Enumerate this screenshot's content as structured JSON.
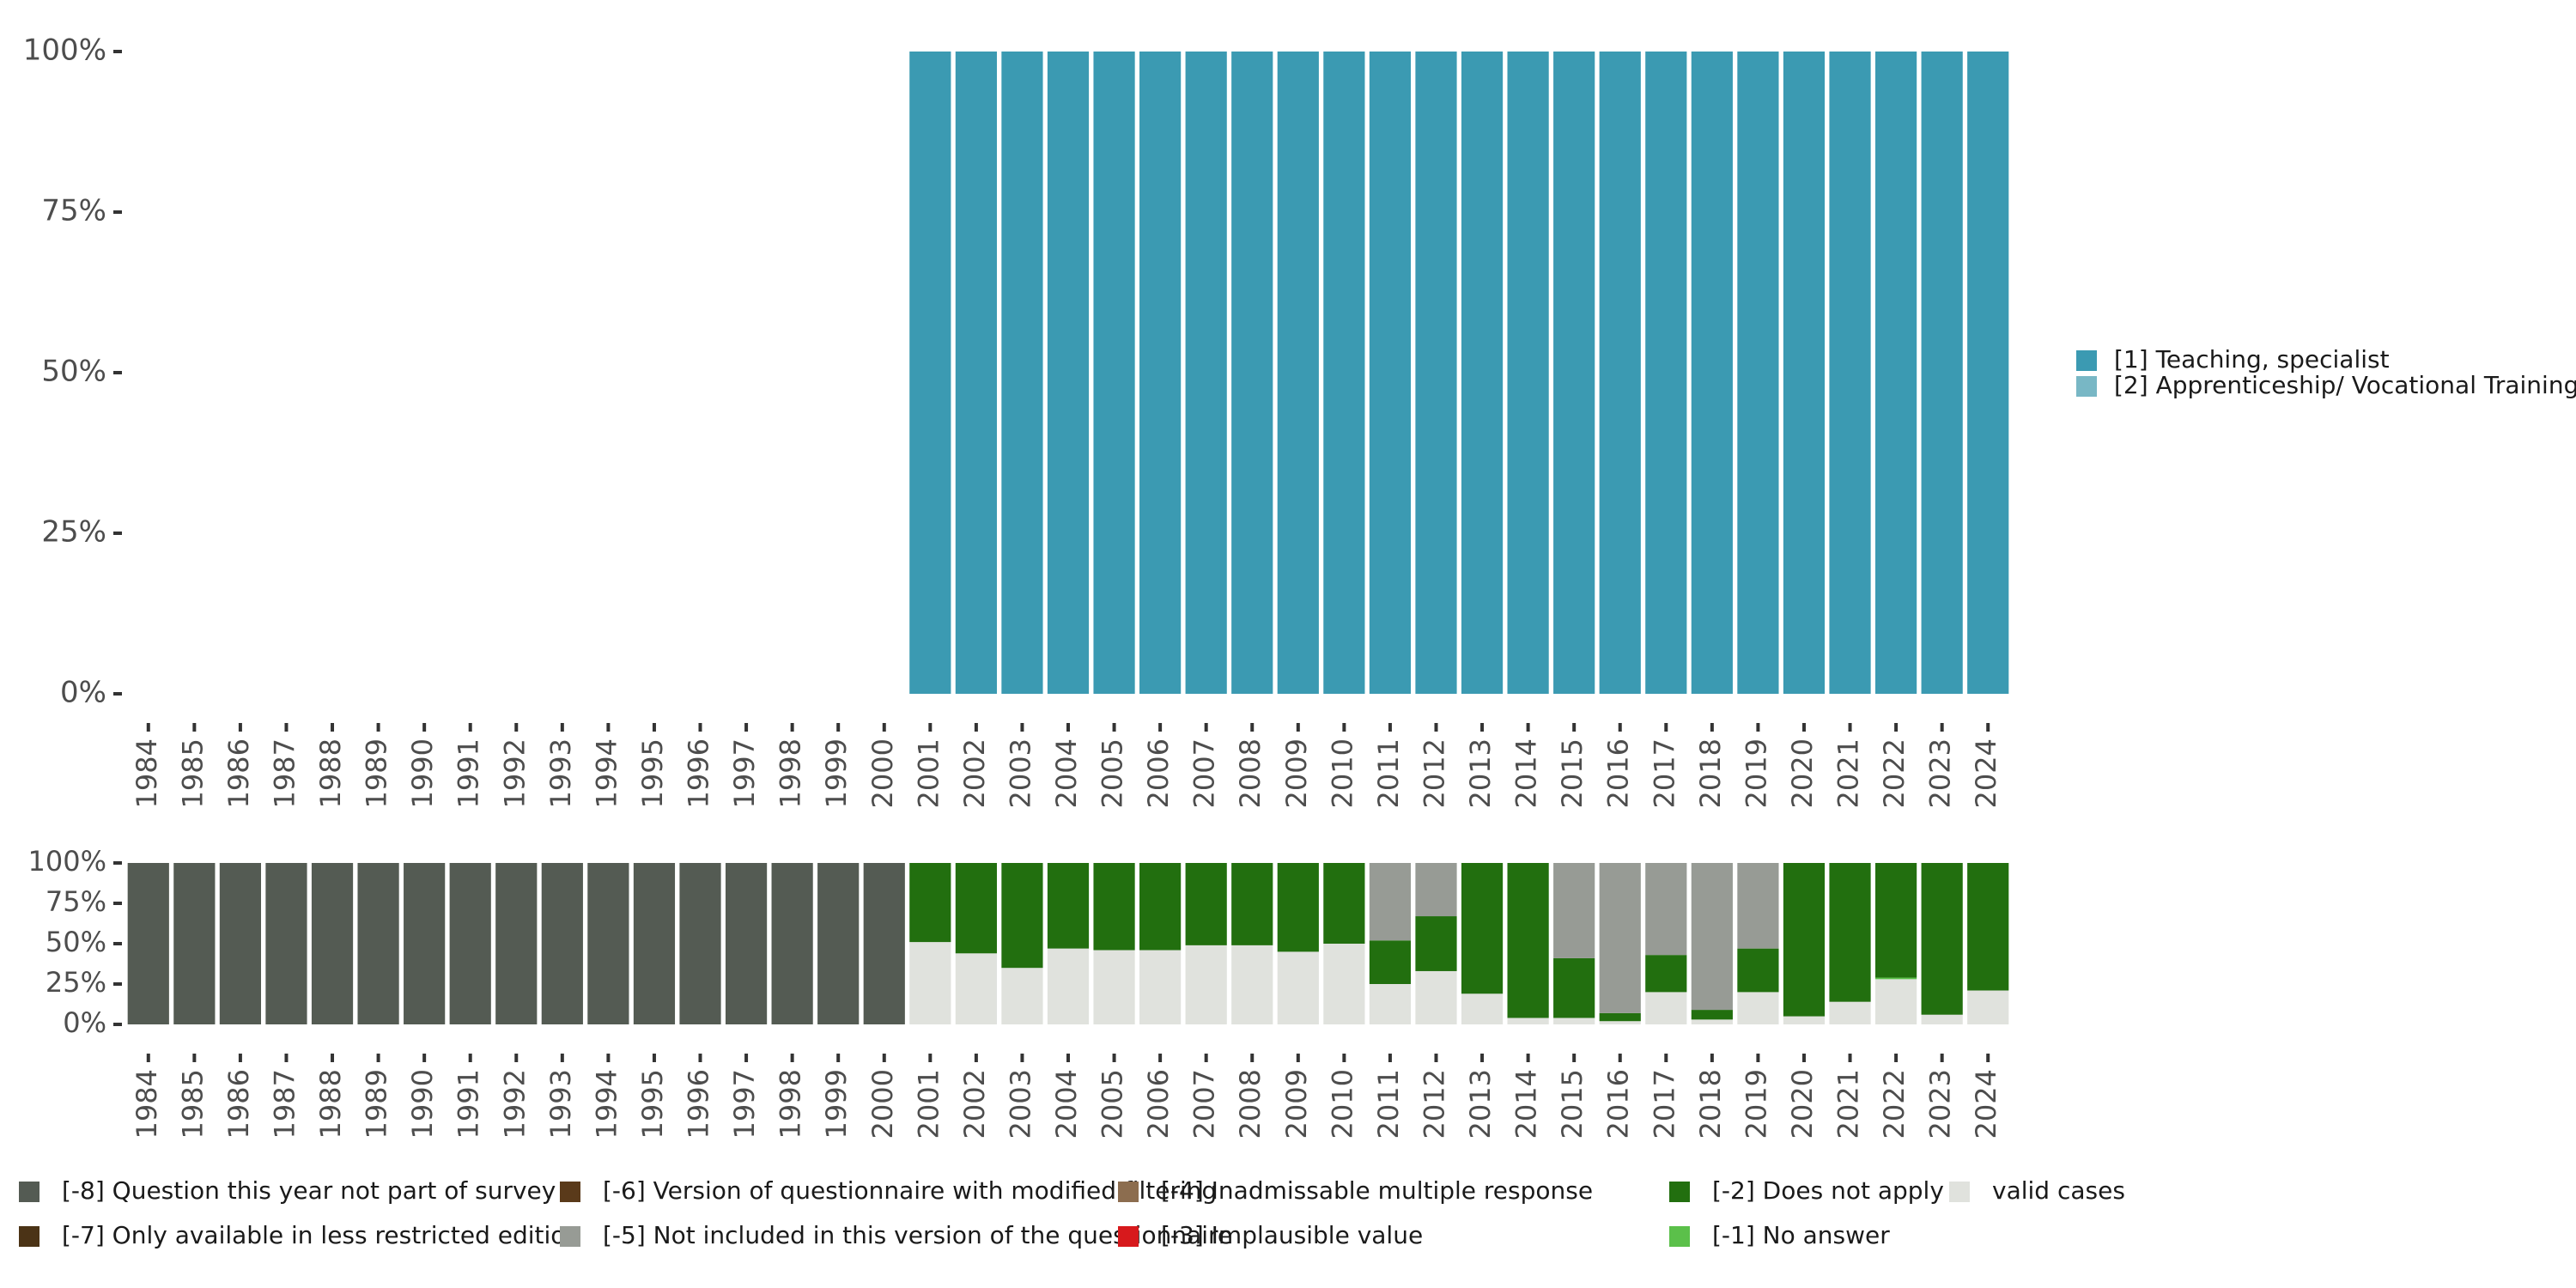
{
  "chart_data": [
    {
      "type": "bar",
      "name": "main",
      "stacked": true,
      "categories": [
        "1984",
        "1985",
        "1986",
        "1987",
        "1988",
        "1989",
        "1990",
        "1991",
        "1992",
        "1993",
        "1994",
        "1995",
        "1996",
        "1997",
        "1998",
        "1999",
        "2000",
        "2001",
        "2002",
        "2003",
        "2004",
        "2005",
        "2006",
        "2007",
        "2008",
        "2009",
        "2010",
        "2011",
        "2012",
        "2013",
        "2014",
        "2015",
        "2016",
        "2017",
        "2018",
        "2019",
        "2020",
        "2021",
        "2022",
        "2023",
        "2024"
      ],
      "series": [
        {
          "name": "[1] Teaching, specialist",
          "color": "#3b9ab2",
          "values": [
            0,
            0,
            0,
            0,
            0,
            0,
            0,
            0,
            0,
            0,
            0,
            0,
            0,
            0,
            0,
            0,
            0,
            100,
            100,
            100,
            100,
            100,
            100,
            100,
            100,
            100,
            100,
            100,
            100,
            100,
            100,
            100,
            100,
            100,
            100,
            100,
            100,
            100,
            100,
            100,
            100
          ]
        },
        {
          "name": "[2] Apprenticeship/ Vocational Training",
          "color": "#78b7c5",
          "values": [
            0,
            0,
            0,
            0,
            0,
            0,
            0,
            0,
            0,
            0,
            0,
            0,
            0,
            0,
            0,
            0,
            0,
            0,
            0,
            0,
            0,
            0,
            0,
            0,
            0,
            0,
            0,
            0,
            0,
            0,
            0,
            0,
            0,
            0,
            0,
            0,
            0,
            0,
            0,
            0,
            0
          ]
        }
      ],
      "yticks": [
        "0%",
        "25%",
        "50%",
        "75%",
        "100%"
      ],
      "ylim": [
        0,
        100
      ]
    },
    {
      "type": "bar",
      "name": "missing",
      "stacked": true,
      "categories": [
        "1984",
        "1985",
        "1986",
        "1987",
        "1988",
        "1989",
        "1990",
        "1991",
        "1992",
        "1993",
        "1994",
        "1995",
        "1996",
        "1997",
        "1998",
        "1999",
        "2000",
        "2001",
        "2002",
        "2003",
        "2004",
        "2005",
        "2006",
        "2007",
        "2008",
        "2009",
        "2010",
        "2011",
        "2012",
        "2013",
        "2014",
        "2015",
        "2016",
        "2017",
        "2018",
        "2019",
        "2020",
        "2021",
        "2022",
        "2023",
        "2024"
      ],
      "series": [
        {
          "name": "valid cases",
          "color": "#e0e2dd",
          "values": [
            0,
            0,
            0,
            0,
            0,
            0,
            0,
            0,
            0,
            0,
            0,
            0,
            0,
            0,
            0,
            0,
            0,
            51,
            44,
            35,
            47,
            46,
            46,
            49,
            49,
            45,
            50,
            25,
            33,
            19,
            4,
            4,
            2,
            20,
            3,
            20,
            5,
            14,
            28,
            6,
            21
          ]
        },
        {
          "name": "[-1] No answer",
          "color": "#5bc04a",
          "values": [
            0,
            0,
            0,
            0,
            0,
            0,
            0,
            0,
            0,
            0,
            0,
            0,
            0,
            0,
            0,
            0,
            0,
            0,
            0,
            0,
            0,
            0,
            0,
            0,
            0,
            0,
            0,
            0,
            0,
            0,
            0,
            0,
            0,
            0,
            0,
            0,
            0,
            0,
            1,
            0,
            0
          ]
        },
        {
          "name": "[-2] Does not apply",
          "color": "#226f0f",
          "values": [
            0,
            0,
            0,
            0,
            0,
            0,
            0,
            0,
            0,
            0,
            0,
            0,
            0,
            0,
            0,
            0,
            0,
            49,
            56,
            65,
            53,
            54,
            54,
            51,
            51,
            55,
            50,
            27,
            34,
            81,
            96,
            37,
            5,
            23,
            6,
            27,
            95,
            86,
            71,
            94,
            79
          ]
        },
        {
          "name": "[-3] Implausible value",
          "color": "#d7191c",
          "values": [
            0,
            0,
            0,
            0,
            0,
            0,
            0,
            0,
            0,
            0,
            0,
            0,
            0,
            0,
            0,
            0,
            0,
            0,
            0,
            0,
            0,
            0,
            0,
            0,
            0,
            0,
            0,
            0,
            0,
            0,
            0,
            0,
            0,
            0,
            0,
            0,
            0,
            0,
            0,
            0,
            0
          ]
        },
        {
          "name": "[-4] Inadmissable multiple response",
          "color": "#8c6d4f",
          "values": [
            0,
            0,
            0,
            0,
            0,
            0,
            0,
            0,
            0,
            0,
            0,
            0,
            0,
            0,
            0,
            0,
            0,
            0,
            0,
            0,
            0,
            0,
            0,
            0,
            0,
            0,
            0,
            0,
            0,
            0,
            0,
            0,
            0,
            0,
            0,
            0,
            0,
            0,
            0,
            0,
            0
          ]
        },
        {
          "name": "[-5] Not included in this version of the questionnaire",
          "color": "#979b95",
          "values": [
            0,
            0,
            0,
            0,
            0,
            0,
            0,
            0,
            0,
            0,
            0,
            0,
            0,
            0,
            0,
            0,
            0,
            0,
            0,
            0,
            0,
            0,
            0,
            0,
            0,
            0,
            0,
            48,
            33,
            0,
            0,
            59,
            93,
            57,
            91,
            53,
            0,
            0,
            0,
            0,
            0
          ]
        },
        {
          "name": "[-6] Version of questionnaire with modified filtering",
          "color": "#5a3a1a",
          "values": [
            0,
            0,
            0,
            0,
            0,
            0,
            0,
            0,
            0,
            0,
            0,
            0,
            0,
            0,
            0,
            0,
            0,
            0,
            0,
            0,
            0,
            0,
            0,
            0,
            0,
            0,
            0,
            0,
            0,
            0,
            0,
            0,
            0,
            0,
            0,
            0,
            0,
            0,
            0,
            0,
            0
          ]
        },
        {
          "name": "[-7] Only available in less restricted edition",
          "color": "#4b3316",
          "values": [
            0,
            0,
            0,
            0,
            0,
            0,
            0,
            0,
            0,
            0,
            0,
            0,
            0,
            0,
            0,
            0,
            0,
            0,
            0,
            0,
            0,
            0,
            0,
            0,
            0,
            0,
            0,
            0,
            0,
            0,
            0,
            0,
            0,
            0,
            0,
            0,
            0,
            0,
            0,
            0,
            0
          ]
        },
        {
          "name": "[-8] Question this year not part of survey",
          "color": "#545b53",
          "values": [
            100,
            100,
            100,
            100,
            100,
            100,
            100,
            100,
            100,
            100,
            100,
            100,
            100,
            100,
            100,
            100,
            100,
            0,
            0,
            0,
            0,
            0,
            0,
            0,
            0,
            0,
            0,
            0,
            0,
            0,
            0,
            0,
            0,
            0,
            0,
            0,
            0,
            0,
            0,
            0,
            0
          ]
        }
      ],
      "yticks": [
        "0%",
        "25%",
        "50%",
        "75%",
        "100%"
      ],
      "ylim": [
        0,
        100
      ]
    }
  ],
  "legend_main": [
    {
      "label": "[1] Teaching, specialist",
      "color": "#3b9ab2"
    },
    {
      "label": "[2] Apprenticeship/ Vocational Training",
      "color": "#78b7c5"
    }
  ],
  "legend_missing": [
    {
      "label": "[-8] Question this year not part of survey",
      "color": "#545b53"
    },
    {
      "label": "[-6] Version of questionnaire with modified filtering",
      "color": "#5a3a1a"
    },
    {
      "label": "[-4] Inadmissable multiple response",
      "color": "#8c6d4f"
    },
    {
      "label": "[-2] Does not apply",
      "color": "#226f0f"
    },
    {
      "label": "valid cases",
      "color": "#e0e2dd"
    },
    {
      "label": "[-7] Only available in less restricted edition",
      "color": "#4b3316"
    },
    {
      "label": "[-5] Not included in this version of the questionnaire",
      "color": "#979b95"
    },
    {
      "label": "[-3] Implausible value",
      "color": "#d7191c"
    },
    {
      "label": "[-1] No answer",
      "color": "#5bc04a"
    }
  ]
}
